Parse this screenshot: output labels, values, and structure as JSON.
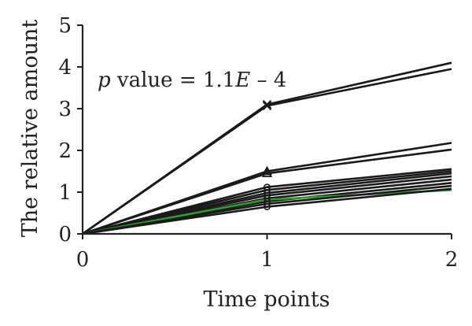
{
  "chart_data": {
    "type": "line",
    "title": "",
    "xlabel": "Time points",
    "ylabel": "The relative amount",
    "xlim": [
      0,
      2
    ],
    "ylim": [
      0,
      5
    ],
    "x_ticks": [
      0,
      1,
      2
    ],
    "y_ticks": [
      0,
      1,
      2,
      3,
      4,
      5
    ],
    "grid": false,
    "annotation": {
      "p_symbol": "p",
      "text_mid": " value = 1.1",
      "e_symbol": "E",
      "text_end": " – 4"
    },
    "x": [
      0,
      1,
      2
    ],
    "series": [
      {
        "values": [
          0,
          3.1,
          4.1
        ],
        "color": "#1a1a1a",
        "marker": "x"
      },
      {
        "values": [
          0,
          3.07,
          3.95
        ],
        "color": "#1a1a1a",
        "marker": "x"
      },
      {
        "values": [
          0,
          1.5,
          2.18
        ],
        "color": "#1a1a1a",
        "marker": "triangle"
      },
      {
        "values": [
          0,
          1.45,
          2.02
        ],
        "color": "#1a1a1a",
        "marker": "triangle"
      },
      {
        "values": [
          0,
          1.12,
          1.55
        ],
        "color": "#1a1a1a",
        "marker": "circle"
      },
      {
        "values": [
          0,
          1.05,
          1.5
        ],
        "color": "#1a1a1a",
        "marker": "circle"
      },
      {
        "values": [
          0,
          0.98,
          1.45
        ],
        "color": "#1a1a1a",
        "marker": "circle"
      },
      {
        "values": [
          0,
          0.92,
          1.38
        ],
        "color": "#1a1a1a",
        "marker": "circle"
      },
      {
        "values": [
          0,
          0.85,
          1.3
        ],
        "color": "#1a1a1a",
        "marker": "circle"
      },
      {
        "values": [
          0,
          0.78,
          1.22
        ],
        "color": "#1a1a1a",
        "marker": "circle"
      },
      {
        "values": [
          0,
          0.82,
          1.05
        ],
        "color": "#2e9c2e",
        "marker": "none"
      },
      {
        "values": [
          0,
          0.72,
          1.15
        ],
        "color": "#1a1a1a",
        "marker": "circle"
      },
      {
        "values": [
          0,
          0.65,
          1.08
        ],
        "color": "#1a1a1a",
        "marker": "circle"
      }
    ]
  }
}
